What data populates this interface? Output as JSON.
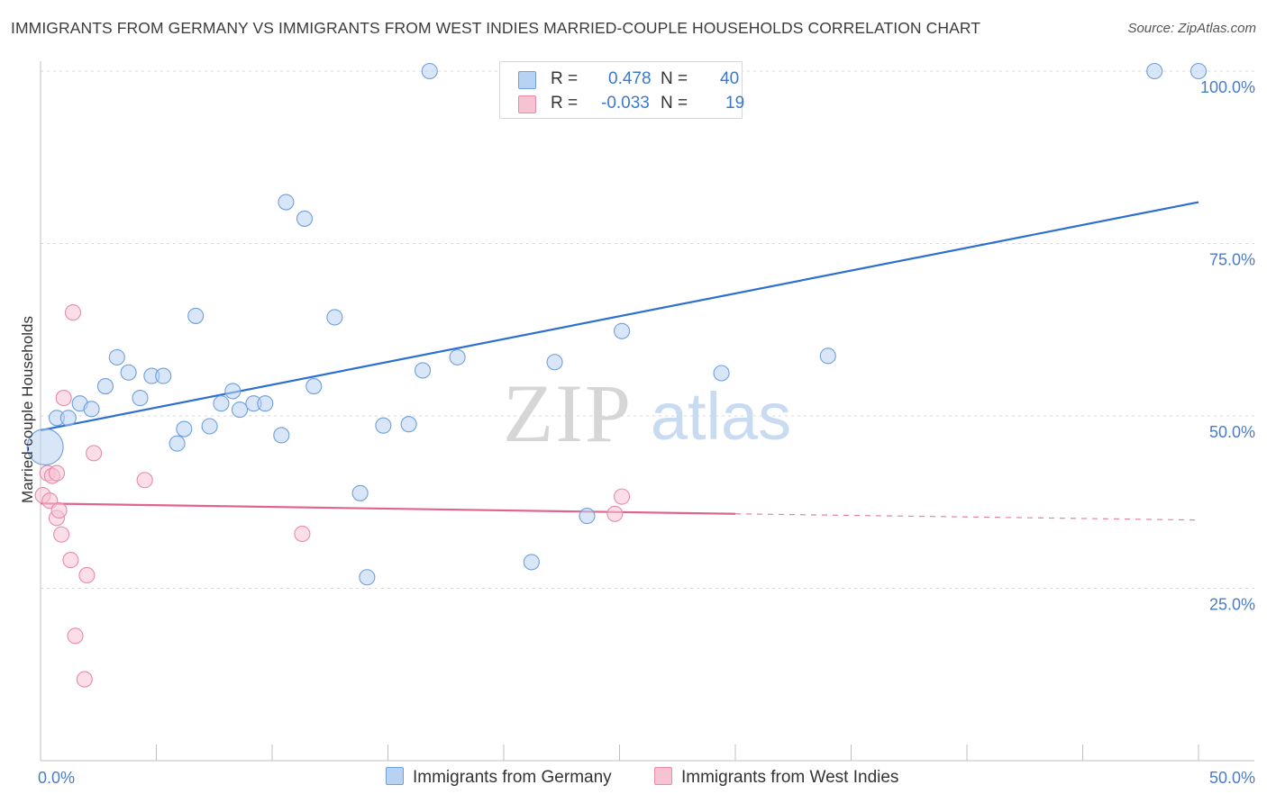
{
  "title": "IMMIGRANTS FROM GERMANY VS IMMIGRANTS FROM WEST INDIES MARRIED-COUPLE HOUSEHOLDS CORRELATION CHART",
  "source": "Source: ZipAtlas.com",
  "watermark": {
    "zip": "ZIP",
    "atlas": "atlas"
  },
  "legend": {
    "rows": [
      {
        "r_label": "R =",
        "r_value": "0.478",
        "n_label": "N =",
        "n_value": "40"
      },
      {
        "r_label": "R =",
        "r_value": "-0.033",
        "n_label": "N =",
        "n_value": "19"
      }
    ]
  },
  "colors": {
    "germany_fill": "#b8d2f3",
    "germany_stroke": "#6f9fdc",
    "germany_line": "#2d6fd0",
    "westindies_fill": "#f7c3d3",
    "westindies_stroke": "#e88aa8",
    "westindies_line": "#e0648d",
    "grid": "#d9d9d9",
    "tick_text": "#4a7cc7"
  },
  "chart_data": {
    "type": "scatter",
    "title": "IMMIGRANTS FROM GERMANY VS IMMIGRANTS FROM WEST INDIES MARRIED-COUPLE HOUSEHOLDS CORRELATION CHART",
    "xlabel": "",
    "ylabel": "Married-couple Households",
    "xlim": [
      0,
      50
    ],
    "ylim": [
      0,
      100
    ],
    "x_tick_labels": [
      "0.0%",
      "50.0%"
    ],
    "y_ticks": [
      25,
      50,
      75,
      100
    ],
    "y_tick_labels": [
      "25.0%",
      "50.0%",
      "75.0%",
      "100.0%"
    ],
    "grid": true,
    "legend_position": "top-center",
    "series": [
      {
        "name": "Immigrants from Germany",
        "r": 0.478,
        "n": 40,
        "trend": {
          "x": [
            0,
            50
          ],
          "y": [
            47.9,
            81.0
          ]
        },
        "points": [
          [
            0.2,
            45.5
          ],
          [
            0.7,
            49.7
          ],
          [
            1.2,
            49.7
          ],
          [
            1.7,
            51.8
          ],
          [
            2.2,
            51.0
          ],
          [
            2.8,
            54.3
          ],
          [
            3.3,
            58.5
          ],
          [
            3.8,
            56.3
          ],
          [
            4.3,
            52.6
          ],
          [
            4.8,
            55.8
          ],
          [
            5.3,
            55.8
          ],
          [
            5.9,
            46.0
          ],
          [
            6.2,
            48.1
          ],
          [
            6.7,
            64.5
          ],
          [
            7.3,
            48.5
          ],
          [
            7.8,
            51.8
          ],
          [
            8.3,
            53.6
          ],
          [
            8.6,
            50.9
          ],
          [
            9.2,
            51.8
          ],
          [
            9.7,
            51.8
          ],
          [
            10.4,
            47.2
          ],
          [
            10.6,
            81.0
          ],
          [
            11.4,
            78.6
          ],
          [
            11.8,
            54.3
          ],
          [
            12.7,
            64.3
          ],
          [
            13.8,
            38.8
          ],
          [
            14.1,
            26.6
          ],
          [
            14.8,
            48.6
          ],
          [
            15.9,
            48.8
          ],
          [
            16.5,
            56.6
          ],
          [
            16.8,
            100.0
          ],
          [
            18.0,
            58.5
          ],
          [
            21.2,
            28.8
          ],
          [
            22.2,
            57.8
          ],
          [
            23.6,
            35.5
          ],
          [
            25.1,
            62.3
          ],
          [
            29.4,
            56.2
          ],
          [
            34.0,
            58.7
          ],
          [
            48.1,
            100.0
          ],
          [
            50.0,
            100.0
          ]
        ]
      },
      {
        "name": "Immigrants from West Indies",
        "r": -0.033,
        "n": 19,
        "trend": {
          "x": [
            0,
            30
          ],
          "y": [
            37.3,
            35.8
          ]
        },
        "trend_dashed": {
          "x": [
            30,
            50
          ],
          "y": [
            35.8,
            34.9
          ]
        },
        "points": [
          [
            0.1,
            38.5
          ],
          [
            0.3,
            41.7
          ],
          [
            0.4,
            37.7
          ],
          [
            0.5,
            41.3
          ],
          [
            0.7,
            41.7
          ],
          [
            0.7,
            35.2
          ],
          [
            0.8,
            36.3
          ],
          [
            0.9,
            32.8
          ],
          [
            1.0,
            52.6
          ],
          [
            1.3,
            29.1
          ],
          [
            1.4,
            65.0
          ],
          [
            1.5,
            18.1
          ],
          [
            1.9,
            11.8
          ],
          [
            2.0,
            26.9
          ],
          [
            2.3,
            44.6
          ],
          [
            4.5,
            40.7
          ],
          [
            11.3,
            32.9
          ],
          [
            24.8,
            35.8
          ],
          [
            25.1,
            38.3
          ]
        ]
      }
    ]
  }
}
